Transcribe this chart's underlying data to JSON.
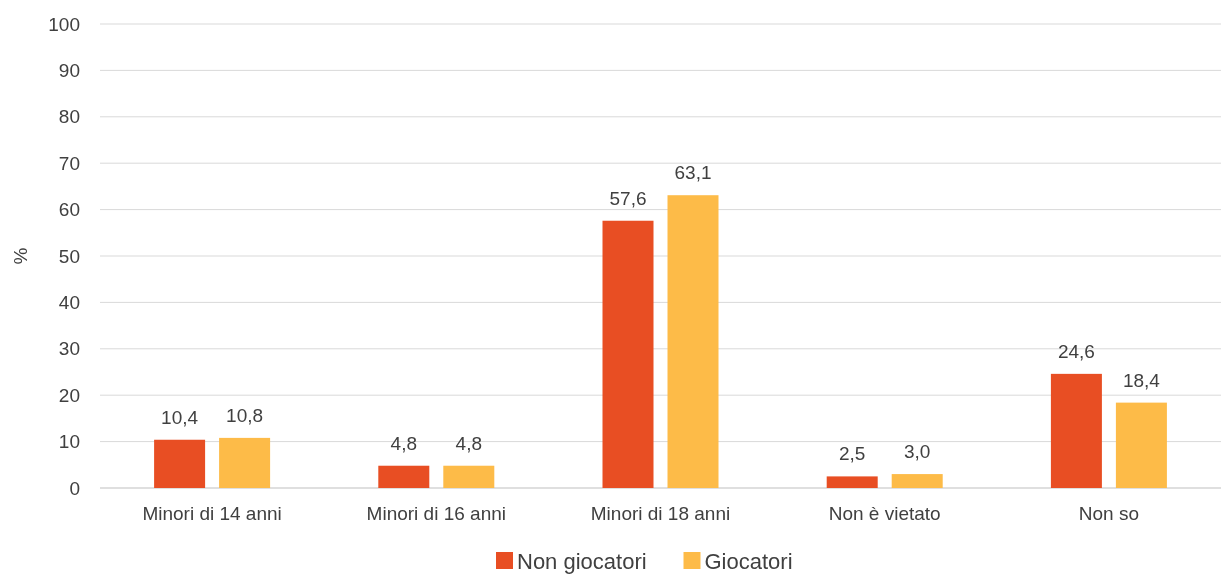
{
  "chart_data": {
    "type": "bar",
    "ylabel": "%",
    "categories": [
      "Minori di 14 anni",
      "Minori di 16 anni",
      "Minori di 18 anni",
      "Non è vietato",
      "Non so"
    ],
    "series": [
      {
        "name": "Non giocatori",
        "color": "#e84e23",
        "values": [
          10.4,
          4.8,
          57.6,
          2.5,
          24.6
        ],
        "value_labels": [
          "10,4",
          "4,8",
          "57,6",
          "2,5",
          "24,6"
        ]
      },
      {
        "name": "Giocatori",
        "color": "#fdbb48",
        "values": [
          10.8,
          4.8,
          63.1,
          3.0,
          18.4
        ],
        "value_labels": [
          "10,8",
          "4,8",
          "63,1",
          "3,0",
          "18,4"
        ]
      }
    ],
    "ylim": [
      0,
      100
    ],
    "yticks": [
      0,
      10,
      20,
      30,
      40,
      50,
      60,
      70,
      80,
      90,
      100
    ],
    "grid": "y",
    "legend": "bottom"
  }
}
